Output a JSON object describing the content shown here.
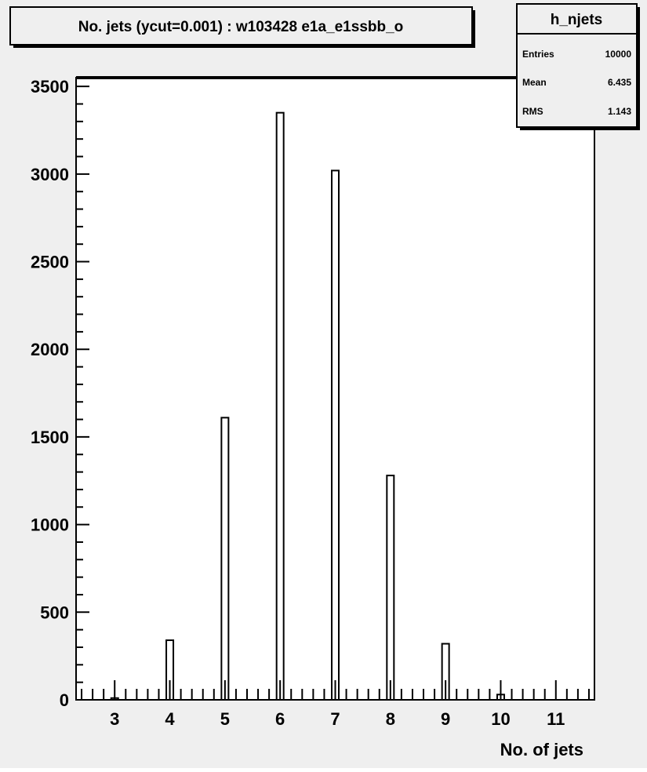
{
  "chart_data": {
    "type": "bar",
    "title": "No. jets (ycut=0.001) : w103428 e1a_e1ssbb_o",
    "xlabel": "No. of jets",
    "ylabel": "",
    "x_tick_labels": [
      "3",
      "4",
      "5",
      "6",
      "7",
      "8",
      "9",
      "10",
      "11"
    ],
    "y_tick_labels": [
      "0",
      "500",
      "1000",
      "1500",
      "2000",
      "2500",
      "3000",
      "3500"
    ],
    "xlim": [
      2.3,
      11.7
    ],
    "ylim": [
      0,
      3550
    ],
    "categories": [
      "3",
      "4",
      "5",
      "6",
      "7",
      "8",
      "9",
      "10",
      "11"
    ],
    "values": [
      10,
      340,
      1610,
      3350,
      3020,
      1280,
      320,
      30,
      0
    ],
    "grid": false,
    "bar_fill": "#ffffff",
    "stroke_color": "#000000",
    "background_color": "#efefef",
    "stats_box": {
      "name": "h_njets",
      "rows": [
        {
          "label": "Entries",
          "value": "10000"
        },
        {
          "label": "Mean",
          "value": "6.435"
        },
        {
          "label": "RMS",
          "value": "1.143"
        }
      ],
      "placement": "top-right"
    }
  }
}
